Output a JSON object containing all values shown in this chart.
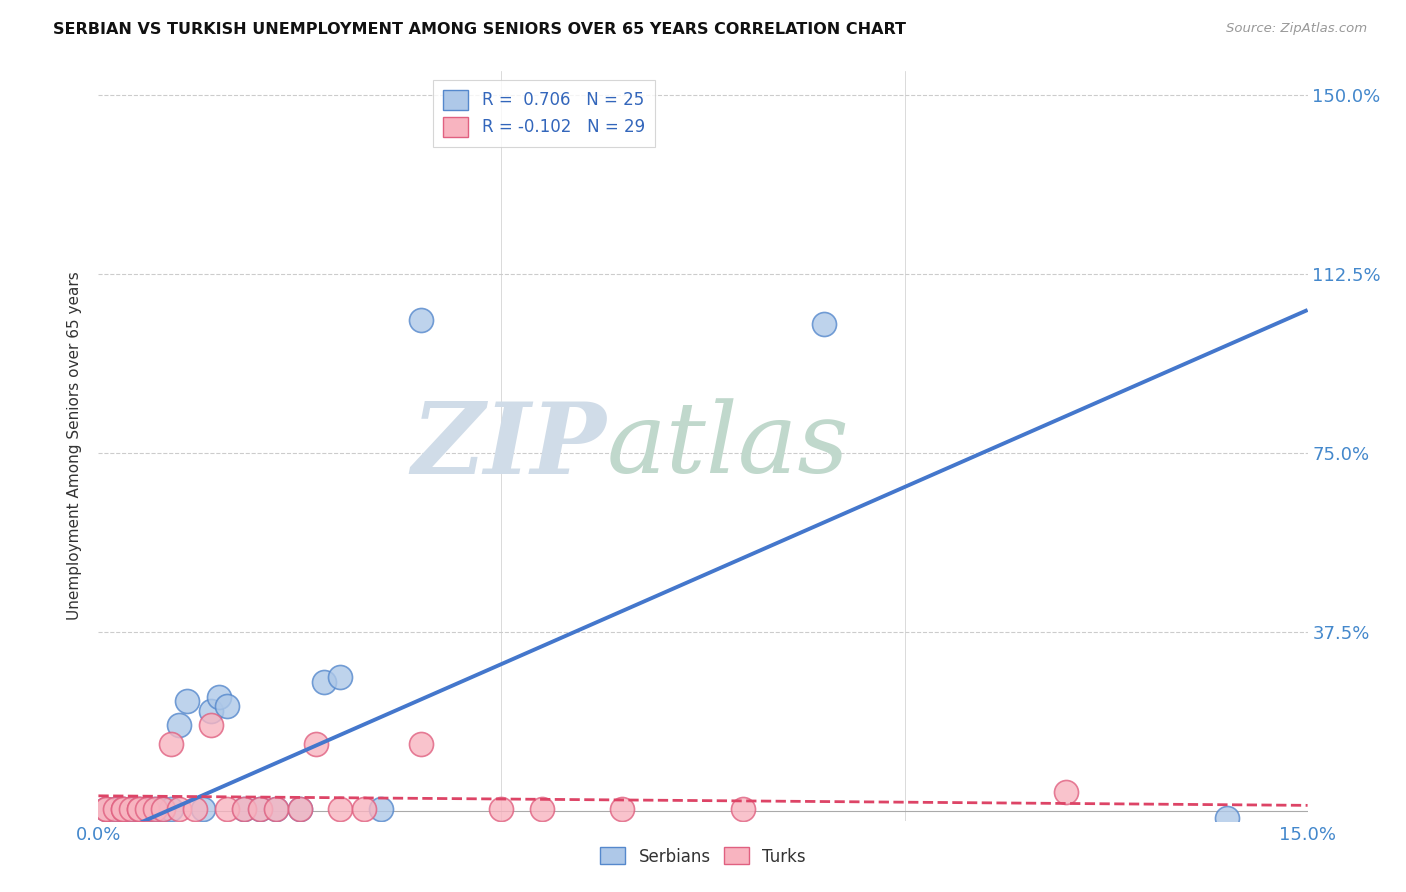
{
  "title": "SERBIAN VS TURKISH UNEMPLOYMENT AMONG SENIORS OVER 65 YEARS CORRELATION CHART",
  "source": "Source: ZipAtlas.com",
  "ylabel": "Unemployment Among Seniors over 65 years",
  "legend_serbian": "R =  0.706   N = 25",
  "legend_turkish": "R = -0.102   N = 29",
  "legend_label_serbian": "Serbians",
  "legend_label_turkish": "Turks",
  "serbian_color": "#aec8e8",
  "turkish_color": "#f8b4c0",
  "serbian_edge_color": "#5588cc",
  "turkish_edge_color": "#e06080",
  "serbian_line_color": "#4477cc",
  "turkish_line_color": "#dd4466",
  "background_color": "#ffffff",
  "xlim": [
    0.0,
    0.15
  ],
  "ylim": [
    -0.02,
    1.55
  ],
  "serbian_scatter": [
    [
      0.001,
      0.005
    ],
    [
      0.002,
      0.005
    ],
    [
      0.003,
      0.005
    ],
    [
      0.004,
      0.005
    ],
    [
      0.005,
      0.005
    ],
    [
      0.006,
      0.005
    ],
    [
      0.007,
      0.005
    ],
    [
      0.008,
      0.005
    ],
    [
      0.009,
      0.005
    ],
    [
      0.01,
      0.18
    ],
    [
      0.011,
      0.23
    ],
    [
      0.013,
      0.005
    ],
    [
      0.014,
      0.21
    ],
    [
      0.015,
      0.24
    ],
    [
      0.016,
      0.22
    ],
    [
      0.018,
      0.005
    ],
    [
      0.02,
      0.005
    ],
    [
      0.022,
      0.005
    ],
    [
      0.025,
      0.005
    ],
    [
      0.028,
      0.27
    ],
    [
      0.03,
      0.28
    ],
    [
      0.035,
      0.005
    ],
    [
      0.04,
      1.03
    ],
    [
      0.09,
      1.02
    ],
    [
      0.14,
      -0.015
    ]
  ],
  "turkish_scatter": [
    [
      0.001,
      0.005
    ],
    [
      0.001,
      0.005
    ],
    [
      0.002,
      0.005
    ],
    [
      0.003,
      0.005
    ],
    [
      0.003,
      0.005
    ],
    [
      0.004,
      0.005
    ],
    [
      0.005,
      0.005
    ],
    [
      0.005,
      0.005
    ],
    [
      0.006,
      0.005
    ],
    [
      0.007,
      0.005
    ],
    [
      0.008,
      0.005
    ],
    [
      0.009,
      0.14
    ],
    [
      0.01,
      0.005
    ],
    [
      0.012,
      0.005
    ],
    [
      0.014,
      0.18
    ],
    [
      0.016,
      0.005
    ],
    [
      0.018,
      0.005
    ],
    [
      0.02,
      0.005
    ],
    [
      0.022,
      0.005
    ],
    [
      0.025,
      0.005
    ],
    [
      0.027,
      0.14
    ],
    [
      0.03,
      0.005
    ],
    [
      0.033,
      0.005
    ],
    [
      0.04,
      0.14
    ],
    [
      0.05,
      0.005
    ],
    [
      0.055,
      0.005
    ],
    [
      0.065,
      0.005
    ],
    [
      0.08,
      0.005
    ],
    [
      0.12,
      0.04
    ]
  ],
  "serbian_trendline": [
    [
      -0.005,
      -0.1
    ],
    [
      0.15,
      1.05
    ]
  ],
  "turkish_trendline": [
    [
      0.0,
      0.032
    ],
    [
      0.15,
      0.012
    ]
  ]
}
